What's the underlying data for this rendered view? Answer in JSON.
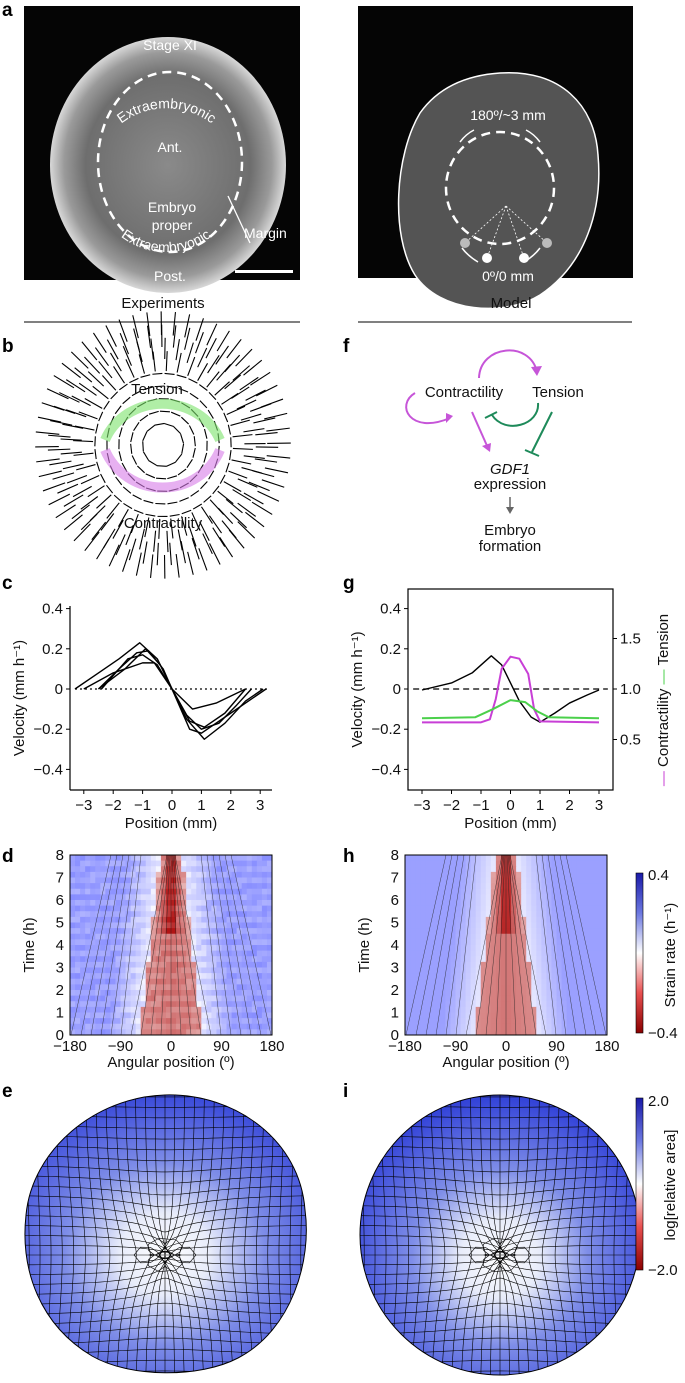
{
  "panels": {
    "a": {
      "label": "a",
      "experiment": {
        "stage": "Stage XI",
        "extra_top": "Extraembryonic",
        "ant": "Ant.",
        "embryo": "Embryo",
        "proper": "proper",
        "post": "Post.",
        "extra_bottom": "Extraembryonic",
        "margin": "Margin"
      },
      "model": {
        "top": "180º/~3 mm",
        "bottom": "0º/0 mm"
      },
      "col_left": "Experiments",
      "col_right": "Model"
    },
    "b": {
      "label": "b",
      "tension": "Tension",
      "contractility": "Contractility",
      "colors": {
        "tension": "#7be36a",
        "contractility": "#d77be8"
      }
    },
    "f": {
      "label": "f",
      "contractility": "Contractility",
      "tension": "Tension",
      "gene": "GDF1",
      "expression": "expression",
      "embryo": "Embryo",
      "formation": "formation",
      "colors": {
        "activation": "#c655d8",
        "inhibition": "#1e8a5a",
        "arrow": "#666666"
      }
    },
    "d": {
      "label": "d"
    },
    "h": {
      "label": "h"
    },
    "e": {
      "label": "e"
    },
    "i": {
      "label": "i"
    }
  },
  "chart_data": [
    {
      "id": "c",
      "label": "c",
      "type": "line",
      "xlabel": "Position (mm)",
      "ylabel": "Velocity (mm h⁻¹)",
      "xlim": [
        -3.5,
        3.5
      ],
      "ylim": [
        -0.5,
        0.5
      ],
      "xticks": [
        "−3",
        "−2",
        "−1",
        "0",
        "1",
        "2",
        "3"
      ],
      "yticks": [
        "0.4",
        "0.2",
        "0",
        "−0.2",
        "−0.4"
      ],
      "reference_line": {
        "y": 0,
        "style": "dotted"
      },
      "series": [
        {
          "points": [
            [
              -3.3,
              0
            ],
            [
              -2.5,
              0.08
            ],
            [
              -1.8,
              0.15
            ],
            [
              -1.1,
              0.23
            ],
            [
              -0.5,
              0.15
            ],
            [
              0,
              0
            ],
            [
              0.5,
              -0.15
            ],
            [
              1.1,
              -0.25
            ],
            [
              1.8,
              -0.17
            ],
            [
              2.5,
              -0.06
            ],
            [
              3.1,
              0
            ]
          ]
        },
        {
          "points": [
            [
              -2.5,
              0
            ],
            [
              -1.8,
              0.1
            ],
            [
              -1.2,
              0.18
            ],
            [
              -0.8,
              0.19
            ],
            [
              -0.3,
              0.1
            ],
            [
              0,
              0
            ],
            [
              0.5,
              -0.13
            ],
            [
              1,
              -0.2
            ],
            [
              1.6,
              -0.17
            ],
            [
              2.2,
              -0.08
            ],
            [
              2.7,
              0
            ]
          ]
        },
        {
          "points": [
            [
              -2.5,
              0
            ],
            [
              -1.6,
              0.1
            ],
            [
              -0.9,
              0.2
            ],
            [
              -0.4,
              0.12
            ],
            [
              0,
              0
            ],
            [
              0.6,
              -0.16
            ],
            [
              1.1,
              -0.19
            ],
            [
              1.8,
              -0.12
            ],
            [
              2.5,
              0
            ]
          ]
        },
        {
          "points": [
            [
              -3,
              0
            ],
            [
              -2,
              0.08
            ],
            [
              -1,
              0.13
            ],
            [
              -0.6,
              0.13
            ],
            [
              0,
              0
            ],
            [
              0.7,
              -0.1
            ],
            [
              1.5,
              -0.07
            ],
            [
              2.5,
              0
            ]
          ]
        },
        {
          "points": [
            [
              -2.4,
              0
            ],
            [
              -1.5,
              0.15
            ],
            [
              -1,
              0.17
            ],
            [
              -0.5,
              0.12
            ],
            [
              0,
              0
            ],
            [
              0.6,
              -0.2
            ],
            [
              1,
              -0.22
            ],
            [
              2,
              -0.12
            ],
            [
              3.2,
              0
            ]
          ]
        }
      ]
    },
    {
      "id": "g",
      "label": "g",
      "type": "line",
      "xlabel": "Position (mm)",
      "ylabel": "Velocity (mm h⁻¹)",
      "ylabel_right_a": "Contractility",
      "ylabel_right_b": "Tension",
      "xlim": [
        -3.3,
        3.3
      ],
      "ylim": [
        -0.5,
        0.5
      ],
      "ylim_right": [
        0,
        2
      ],
      "xticks": [
        "−3",
        "−2",
        "−1",
        "0",
        "1",
        "2",
        "3"
      ],
      "yticks": [
        "0.4",
        "0.2",
        "0",
        "−0.2",
        "−0.4"
      ],
      "yticks_right": [
        "1.5",
        "1.0",
        "0.5"
      ],
      "reference_line": {
        "y": 0,
        "style": "dashed"
      },
      "series": [
        {
          "name": "Velocity",
          "axis": "left",
          "color": "#000000",
          "points": [
            [
              -3,
              -0.005
            ],
            [
              -2,
              0.03
            ],
            [
              -1.3,
              0.08
            ],
            [
              -0.65,
              0.165
            ],
            [
              -0.3,
              0.12
            ],
            [
              0,
              0.03
            ],
            [
              0.3,
              -0.06
            ],
            [
              0.7,
              -0.14
            ],
            [
              1,
              -0.165
            ],
            [
              1.5,
              -0.12
            ],
            [
              2,
              -0.07
            ],
            [
              2.6,
              -0.03
            ],
            [
              3,
              -0.005
            ]
          ]
        },
        {
          "name": "Contractility",
          "axis": "right",
          "color": "#c83fd6",
          "points": [
            [
              -3,
              0.67
            ],
            [
              -1,
              0.67
            ],
            [
              -0.7,
              0.7
            ],
            [
              -0.5,
              0.9
            ],
            [
              -0.3,
              1.2
            ],
            [
              0,
              1.32
            ],
            [
              0.3,
              1.3
            ],
            [
              0.6,
              1.15
            ],
            [
              0.8,
              0.8
            ],
            [
              1,
              0.68
            ],
            [
              3,
              0.67
            ]
          ]
        },
        {
          "name": "Tension",
          "axis": "right",
          "color": "#4bd04b",
          "points": [
            [
              -3,
              0.71
            ],
            [
              -1.2,
              0.72
            ],
            [
              -0.6,
              0.8
            ],
            [
              0,
              0.89
            ],
            [
              0.5,
              0.87
            ],
            [
              0.9,
              0.78
            ],
            [
              1.3,
              0.72
            ],
            [
              3,
              0.71
            ]
          ]
        }
      ]
    },
    {
      "id": "d",
      "type": "heatmap",
      "xlabel": "Angular position (º)",
      "ylabel": "Time (h)",
      "xlim": [
        -180,
        180
      ],
      "ylim": [
        0,
        8
      ],
      "xticks": [
        "−180",
        "−90",
        "0",
        "90",
        "180"
      ],
      "yticks": [
        "8",
        "7",
        "6",
        "5",
        "4",
        "3",
        "2",
        "1",
        "0"
      ],
      "colormap": {
        "min": -0.4,
        "max": 0.4,
        "low": "#c00000",
        "mid": "#ffffff",
        "high": "#1a1aa8"
      }
    },
    {
      "id": "h",
      "type": "heatmap",
      "xlabel": "Angular position (º)",
      "ylabel": "Time (h)",
      "xlim": [
        -180,
        180
      ],
      "ylim": [
        0,
        8
      ],
      "xticks": [
        "−180",
        "−90",
        "0",
        "90",
        "180"
      ],
      "yticks": [
        "8",
        "7",
        "6",
        "5",
        "4",
        "3",
        "2",
        "1",
        "0"
      ],
      "colorbar": {
        "label": "Strain rate (h⁻¹)",
        "max_label": "0.4",
        "min_label": "−0.4",
        "min": -0.4,
        "max": 0.4
      }
    },
    {
      "id": "e_i",
      "type": "heatmap",
      "colorbar": {
        "label": "log[relative area]",
        "max_label": "2.0",
        "min_label": "−2.0",
        "min": -2.0,
        "max": 2.0
      }
    }
  ]
}
